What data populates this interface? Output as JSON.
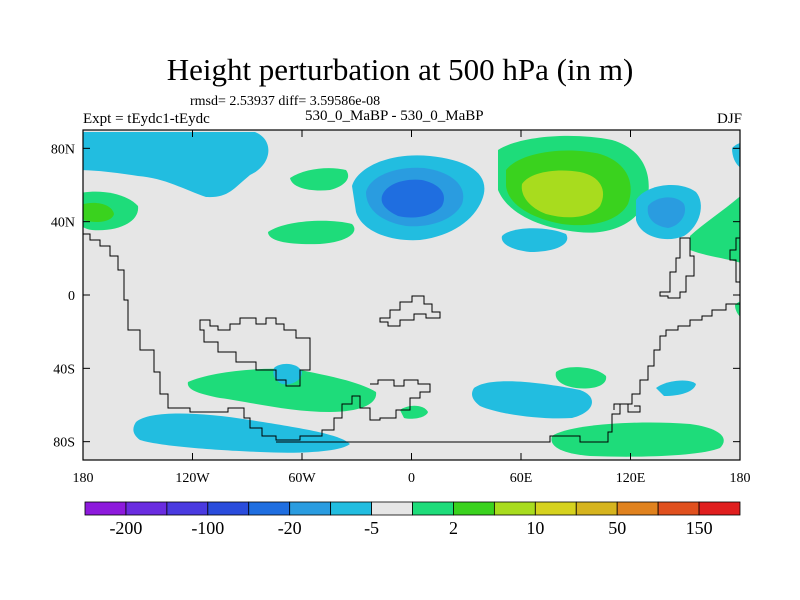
{
  "title": "Height perturbation at 500 hPa (in m)",
  "stats_line": "rmsd= 2.53937 diff= 3.59586e-08",
  "left_label": "Expt = tEydc1-tEydc",
  "center_label": "530_0_MaBP - 530_0_MaBP",
  "right_label": "DJF",
  "axes": {
    "y_ticks": [
      {
        "label": "80N",
        "lat": 80
      },
      {
        "label": "40N",
        "lat": 40
      },
      {
        "label": "0",
        "lat": 0
      },
      {
        "label": "40S",
        "lat": -40
      },
      {
        "label": "80S",
        "lat": -80
      }
    ],
    "x_ticks": [
      {
        "label": "180",
        "lon": -180
      },
      {
        "label": "120W",
        "lon": -120
      },
      {
        "label": "60W",
        "lon": -60
      },
      {
        "label": "0",
        "lon": 0
      },
      {
        "label": "60E",
        "lon": 60
      },
      {
        "label": "120E",
        "lon": 120
      },
      {
        "label": "180",
        "lon": 180
      }
    ]
  },
  "colorbar": {
    "colors": [
      "#8d1adc",
      "#6a2ce0",
      "#4a3ae0",
      "#2a4cdc",
      "#1f6ee0",
      "#2a9ce0",
      "#22bde0",
      "#e6e6e6",
      "#1edc7a",
      "#3ad21e",
      "#a8dc1e",
      "#d6d21e",
      "#d6b41e",
      "#e0821e",
      "#e0501e",
      "#e01e1e"
    ],
    "labels": [
      "-200",
      "-100",
      "-20",
      "-5",
      "2",
      "10",
      "50",
      "150"
    ]
  },
  "map": {
    "background": "#e6e6e6",
    "lon_range": [
      -180,
      180
    ],
    "lat_range": [
      -90,
      90
    ]
  }
}
